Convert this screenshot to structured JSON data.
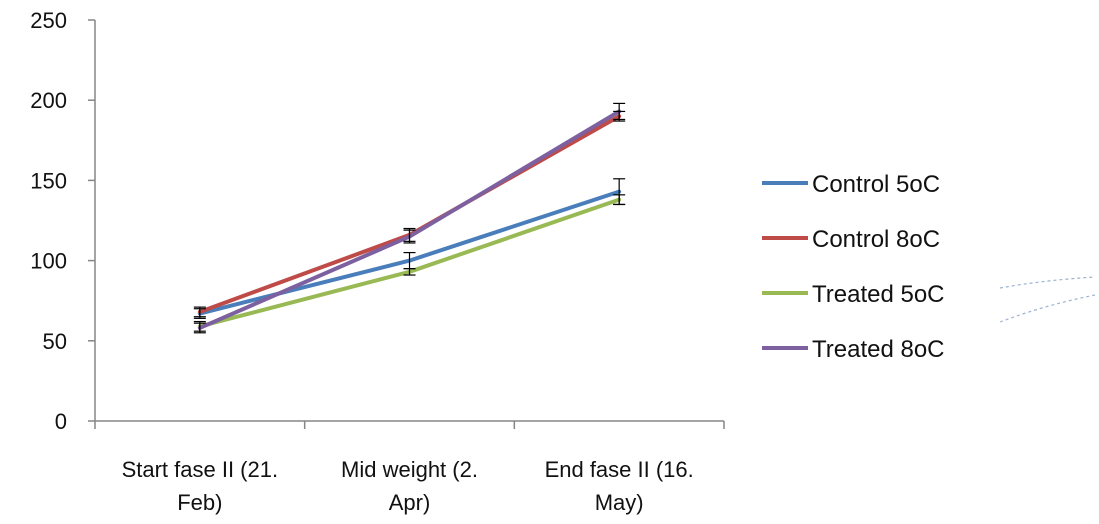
{
  "chart_data": {
    "type": "line",
    "title": "",
    "xlabel": "",
    "ylabel": "",
    "ylim": [
      0,
      250
    ],
    "yticks": [
      0,
      50,
      100,
      150,
      200,
      250
    ],
    "grid": false,
    "legend_position": "right",
    "categories": [
      [
        "Start fase II (21.",
        "Feb)"
      ],
      [
        "Mid weight (2.",
        "Apr)"
      ],
      [
        "End fase II (16.",
        "May)"
      ]
    ],
    "series": [
      {
        "name": "Control 5oC",
        "color": "#4a7ebb",
        "values": [
          67,
          100,
          143
        ],
        "errors": [
          3,
          5,
          8
        ]
      },
      {
        "name": "Control 8oC",
        "color": "#be4b48",
        "values": [
          68,
          116,
          190
        ],
        "errors": [
          3,
          4,
          3
        ]
      },
      {
        "name": "Treated 5oC",
        "color": "#98b954",
        "values": [
          59,
          93,
          138
        ],
        "errors": [
          3,
          2,
          3
        ]
      },
      {
        "name": "Treated 8oC",
        "color": "#7d60a0",
        "values": [
          58,
          115,
          193
        ],
        "errors": [
          3,
          4,
          5
        ]
      }
    ]
  }
}
